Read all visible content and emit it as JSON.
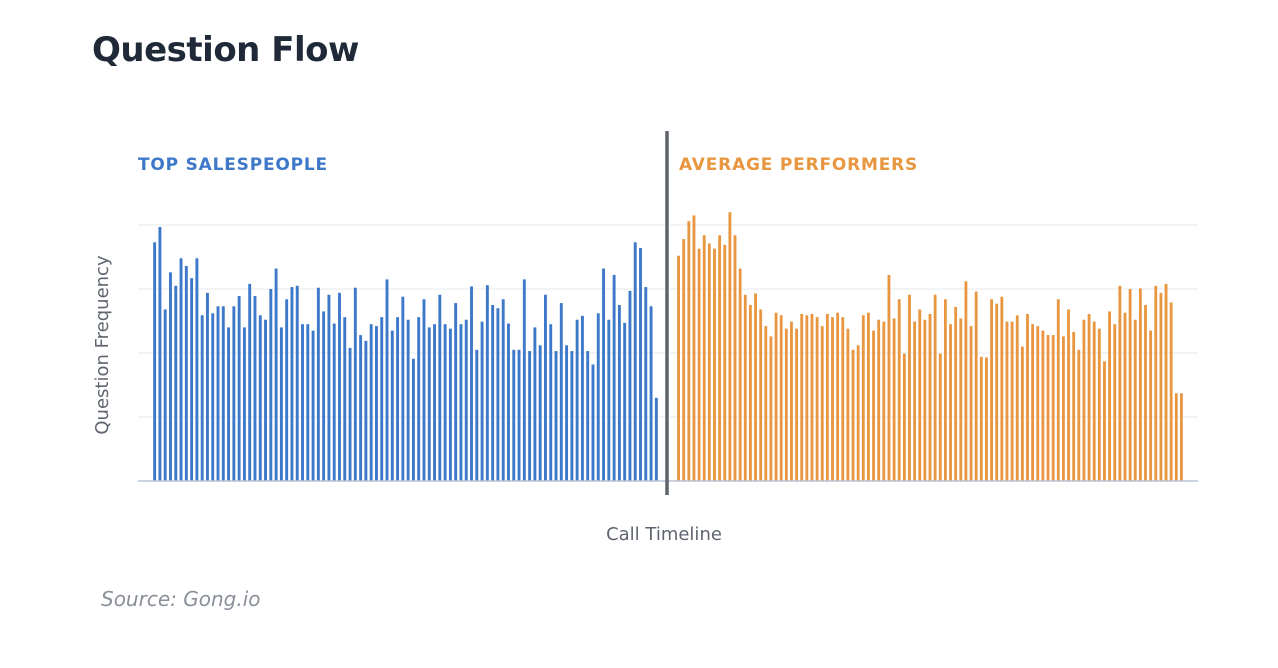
{
  "title": "Question Flow",
  "source": "Source: Gong.io",
  "colors": {
    "top": "#3d78c9",
    "average": "#e8963f",
    "divider": "#5f646a",
    "grid": "#e6e8ec",
    "axis": "#b7c3d4",
    "text": "#5f6570"
  },
  "chart_data": {
    "type": "bar",
    "title": "Question Flow",
    "xlabel": "Call Timeline",
    "ylabel": "Question Frequency",
    "ylim": [
      0,
      5
    ],
    "grid": true,
    "gridlines": [
      1,
      2,
      3,
      4
    ],
    "series": [
      {
        "name": "TOP SALESPEOPLE",
        "color": "#3d78c9",
        "values": [
          3.73,
          3.97,
          2.68,
          3.26,
          3.05,
          3.48,
          3.36,
          3.17,
          3.48,
          2.59,
          2.94,
          2.62,
          2.73,
          2.73,
          2.4,
          2.73,
          2.89,
          2.4,
          3.08,
          2.89,
          2.59,
          2.52,
          3.0,
          3.32,
          2.4,
          2.84,
          3.03,
          3.05,
          2.45,
          2.45,
          2.35,
          3.02,
          2.65,
          2.91,
          2.46,
          2.94,
          2.56,
          2.08,
          3.02,
          2.28,
          2.19,
          2.45,
          2.42,
          2.56,
          3.15,
          2.35,
          2.56,
          2.88,
          2.52,
          1.91,
          2.56,
          2.84,
          2.4,
          2.45,
          2.91,
          2.45,
          2.38,
          2.78,
          2.45,
          2.52,
          3.04,
          2.05,
          2.49,
          3.06,
          2.75,
          2.7,
          2.84,
          2.46,
          2.05,
          2.05,
          3.15,
          2.03,
          2.4,
          2.12,
          2.91,
          2.45,
          2.03,
          2.78,
          2.12,
          2.03,
          2.52,
          2.58,
          2.03,
          1.82,
          2.62,
          3.32,
          2.52,
          3.22,
          2.75,
          2.47,
          2.97,
          3.73,
          3.64,
          3.03,
          2.73,
          1.3
        ]
      },
      {
        "name": "AVERAGE PERFORMERS",
        "color": "#e8963f",
        "values": [
          3.52,
          3.78,
          4.06,
          4.15,
          3.63,
          3.84,
          3.71,
          3.63,
          3.84,
          3.69,
          4.2,
          3.84,
          3.32,
          2.91,
          2.75,
          2.93,
          2.68,
          2.42,
          2.26,
          2.63,
          2.59,
          2.38,
          2.49,
          2.38,
          2.61,
          2.59,
          2.61,
          2.56,
          2.42,
          2.61,
          2.56,
          2.63,
          2.56,
          2.38,
          2.05,
          2.12,
          2.59,
          2.63,
          2.35,
          2.52,
          2.49,
          3.22,
          2.54,
          2.84,
          1.99,
          2.91,
          2.49,
          2.68,
          2.52,
          2.61,
          2.91,
          1.99,
          2.84,
          2.45,
          2.72,
          2.54,
          3.12,
          2.42,
          2.96,
          1.94,
          1.93,
          2.84,
          2.77,
          2.88,
          2.49,
          2.49,
          2.59,
          2.1,
          2.61,
          2.45,
          2.42,
          2.35,
          2.28,
          2.28,
          2.84,
          2.26,
          2.68,
          2.33,
          2.05,
          2.52,
          2.61,
          2.49,
          2.38,
          1.87,
          2.65,
          2.45,
          3.05,
          2.63,
          3.0,
          2.52,
          3.01,
          2.75,
          2.35,
          3.05,
          2.94,
          3.08,
          2.79,
          1.37,
          1.37
        ]
      }
    ],
    "section_labels": [
      "TOP SALESPEOPLE",
      "AVERAGE PERFORMERS"
    ]
  }
}
